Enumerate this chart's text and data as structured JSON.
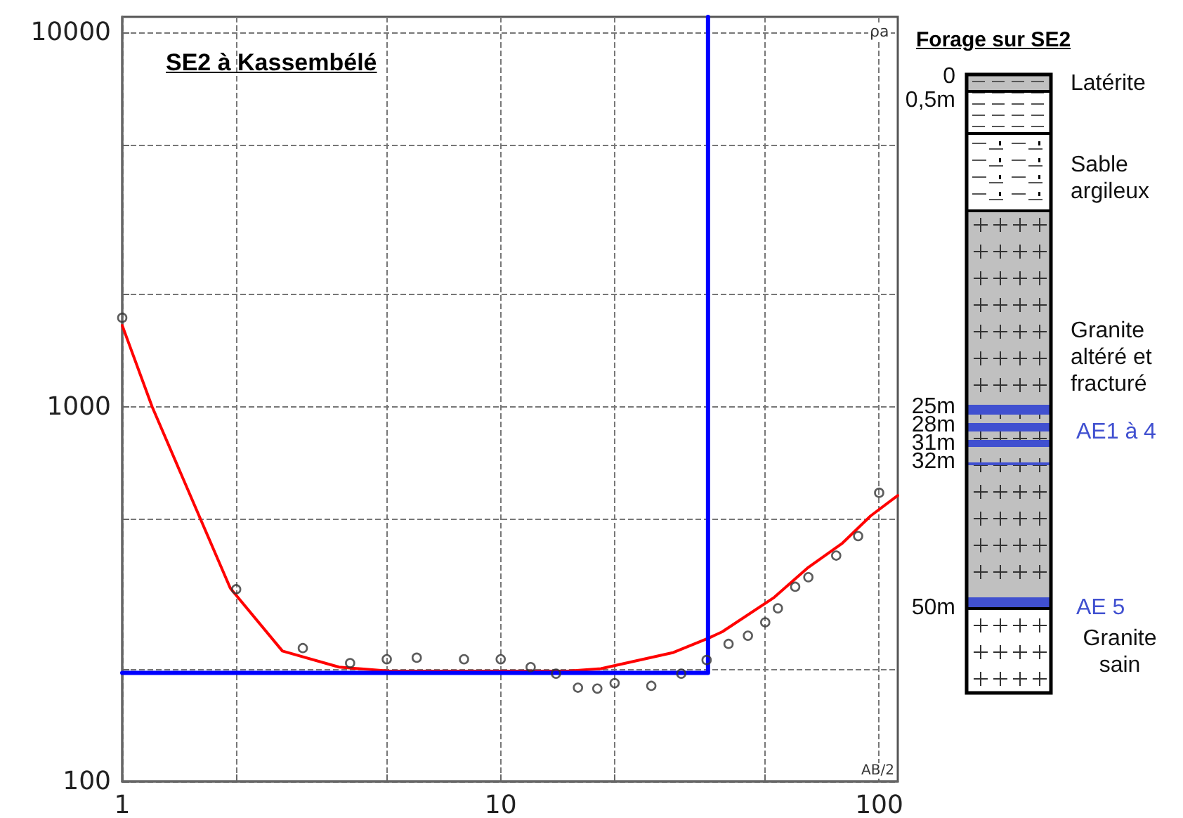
{
  "chart_data": [
    {
      "type": "scatter",
      "title": "SE2 à Kassembélé",
      "xlabel": "AB/2",
      "ylabel": "ρa",
      "log": "xy",
      "grid": true,
      "xlim": [
        1,
        112
      ],
      "ylim": [
        100,
        11000
      ],
      "xticks": [
        1,
        {
          "value": 2,
          "label": null
        },
        {
          "value": 5,
          "label": null
        },
        10,
        {
          "value": 20,
          "label": null
        },
        {
          "value": 50,
          "label": null
        },
        100
      ],
      "yticks": [
        100,
        {
          "value": 200,
          "label": null
        },
        {
          "value": 500,
          "label": null
        },
        1000,
        {
          "value": 2000,
          "label": null
        },
        {
          "value": 5000,
          "label": null
        },
        10000
      ],
      "series": [
        {
          "type": "scatter",
          "marker": "circle",
          "color": "#333333",
          "x": [
            1,
            2,
            3,
            4,
            5,
            6,
            8,
            10,
            12,
            14,
            16,
            18,
            20,
            25,
            30,
            35,
            40,
            45,
            50,
            54,
            60,
            65,
            77,
            88,
            100
          ],
          "values": [
            1730,
            326,
            227,
            207,
            212,
            214,
            212,
            212,
            202,
            194,
            178,
            177,
            183,
            180,
            194,
            211,
            233,
            245,
            266,
            290,
            331,
            351,
            401,
            452,
            590
          ]
        },
        {
          "type": "line",
          "marker": "none",
          "color": "#ff0000",
          "x": [
            1,
            1.2,
            1.93,
            2.65,
            3.74,
            5.1,
            15,
            18.4,
            28.6,
            35.3,
            38.5,
            52.8,
            65,
            80,
            95,
            112
          ],
          "values": [
            1650,
            1000,
            328,
            223,
            202,
            197,
            197,
            200,
            221,
            241,
            251,
            310,
            373,
            433,
            512,
            580
          ]
        },
        {
          "type": "line",
          "marker": "none",
          "color": "#0000ff",
          "x": [
            1,
            35.3,
            35.3
          ],
          "values": [
            195,
            195,
            11000
          ]
        }
      ]
    },
    {
      "type": "other",
      "title": "Forage sur SE2",
      "annotations": [
        "0",
        "0,5m",
        "Latérite",
        "Sable argileux",
        "Granite altéré et fracturé",
        "25m",
        "28m",
        "31m",
        "32m",
        "AE1 à 4",
        "50m",
        "AE 5",
        "Granite sain"
      ]
    }
  ]
}
